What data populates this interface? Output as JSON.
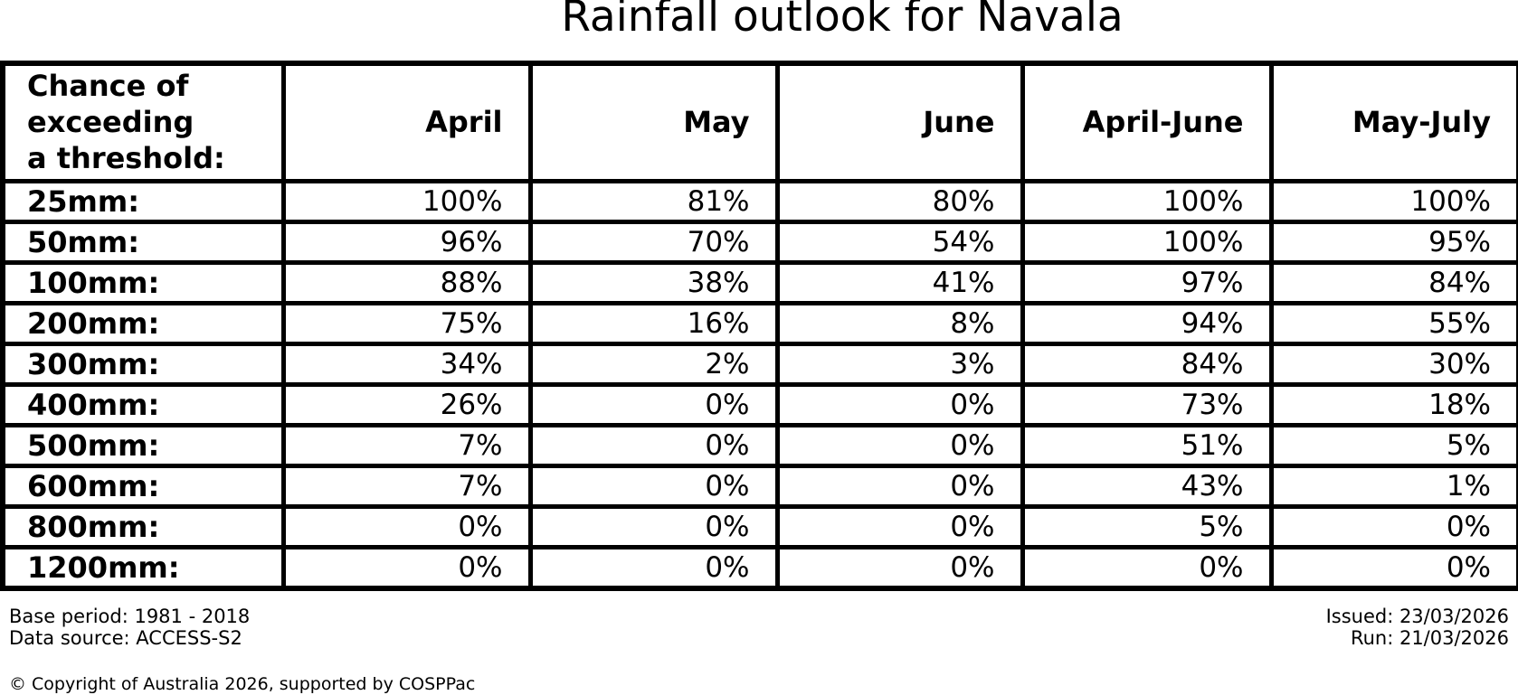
{
  "title": "Rainfall outlook for Navala",
  "table": {
    "corner_header": "Chance of\nexceeding\na threshold:",
    "columns": [
      "April",
      "May",
      "June",
      "April-June",
      "May-July"
    ],
    "rows": [
      {
        "threshold": "25mm:",
        "values": [
          "100%",
          "81%",
          "80%",
          "100%",
          "100%"
        ]
      },
      {
        "threshold": "50mm:",
        "values": [
          "96%",
          "70%",
          "54%",
          "100%",
          "95%"
        ]
      },
      {
        "threshold": "100mm:",
        "values": [
          "88%",
          "38%",
          "41%",
          "97%",
          "84%"
        ]
      },
      {
        "threshold": "200mm:",
        "values": [
          "75%",
          "16%",
          "8%",
          "94%",
          "55%"
        ]
      },
      {
        "threshold": "300mm:",
        "values": [
          "34%",
          "2%",
          "3%",
          "84%",
          "30%"
        ]
      },
      {
        "threshold": "400mm:",
        "values": [
          "26%",
          "0%",
          "0%",
          "73%",
          "18%"
        ]
      },
      {
        "threshold": "500mm:",
        "values": [
          "7%",
          "0%",
          "0%",
          "51%",
          "5%"
        ]
      },
      {
        "threshold": "600mm:",
        "values": [
          "7%",
          "0%",
          "0%",
          "43%",
          "1%"
        ]
      },
      {
        "threshold": "800mm:",
        "values": [
          "0%",
          "0%",
          "0%",
          "5%",
          "0%"
        ]
      },
      {
        "threshold": "1200mm:",
        "values": [
          "0%",
          "0%",
          "0%",
          "0%",
          "0%"
        ]
      }
    ]
  },
  "footer": {
    "base_period": "Base period: 1981 - 2018",
    "data_source": "Data source: ACCESS-S2",
    "issued": "Issued: 23/03/2026",
    "run": "Run: 21/03/2026",
    "copyright": "© Copyright of Australia 2026, supported by COSPPac"
  },
  "colors": {
    "text": "#000000",
    "background": "#ffffff",
    "border": "#000000"
  },
  "chart_data": {
    "type": "table",
    "title": "Rainfall outlook for Navala",
    "row_header_label": "Chance of exceeding a threshold:",
    "columns": [
      "April",
      "May",
      "June",
      "April-June",
      "May-July"
    ],
    "thresholds": [
      "25mm",
      "50mm",
      "100mm",
      "200mm",
      "300mm",
      "400mm",
      "500mm",
      "600mm",
      "800mm",
      "1200mm"
    ],
    "values_percent": [
      [
        100,
        81,
        80,
        100,
        100
      ],
      [
        96,
        70,
        54,
        100,
        95
      ],
      [
        88,
        38,
        41,
        97,
        84
      ],
      [
        75,
        16,
        8,
        94,
        55
      ],
      [
        34,
        2,
        3,
        84,
        30
      ],
      [
        26,
        0,
        0,
        73,
        18
      ],
      [
        7,
        0,
        0,
        51,
        5
      ],
      [
        7,
        0,
        0,
        43,
        1
      ],
      [
        0,
        0,
        0,
        5,
        0
      ],
      [
        0,
        0,
        0,
        0,
        0
      ]
    ]
  }
}
